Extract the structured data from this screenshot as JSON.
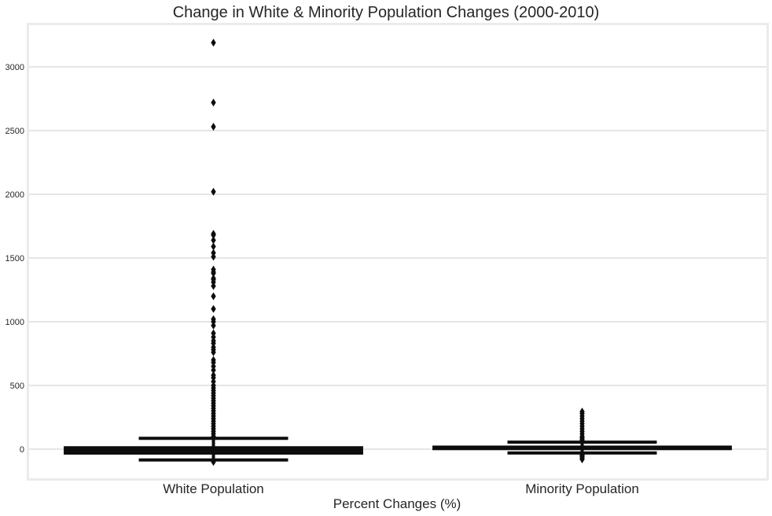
{
  "chart_data": {
    "type": "box",
    "title": "Change in White & Minority Population Changes (2000-2010)",
    "xlabel": "Percent Changes (%)",
    "ylabel": "",
    "ylim": [
      -250,
      3300
    ],
    "yticks": [
      0,
      500,
      1000,
      1500,
      2000,
      2500,
      3000
    ],
    "grid": "horizontal",
    "categories": [
      "White Population",
      "Minority Population"
    ],
    "boxes": [
      {
        "name": "White Population",
        "whisker_low": -85,
        "q1": -40,
        "median": -10,
        "q3": 20,
        "whisker_high": 85,
        "outliers": [
          3190,
          2720,
          2530,
          2020,
          1690,
          1680,
          1640,
          1590,
          1540,
          1510,
          1410,
          1390,
          1380,
          1340,
          1330,
          1310,
          1280,
          1200,
          1100,
          1020,
          1000,
          970,
          910,
          880,
          850,
          830,
          800,
          780,
          760,
          700,
          680,
          650,
          620,
          580,
          560,
          530,
          500,
          480,
          460,
          440,
          420,
          400,
          380,
          360,
          340,
          320,
          300,
          280,
          260,
          240,
          220,
          200,
          180,
          160,
          140,
          120,
          100,
          -100
        ]
      },
      {
        "name": "Minority Population",
        "whisker_low": -30,
        "q1": -5,
        "median": 10,
        "q3": 25,
        "whisker_high": 55,
        "outliers": [
          295,
          280,
          260,
          240,
          220,
          200,
          180,
          160,
          140,
          120,
          100,
          90,
          80,
          70,
          60,
          -35,
          -40,
          -45,
          -50,
          -55,
          -60,
          -70,
          -80
        ]
      }
    ],
    "colors": {
      "box": "#0d0d0d",
      "grid": "#cccccc",
      "frame": "#ebebeb"
    }
  }
}
